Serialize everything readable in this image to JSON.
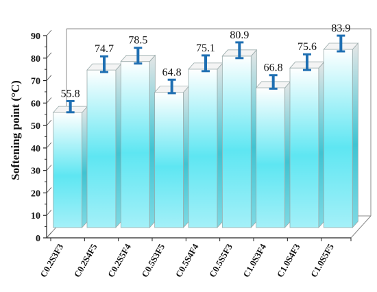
{
  "chart_data": {
    "type": "bar",
    "categories": [
      "C0.2S3F3",
      "C0.2S4F5",
      "C0.2S5F4",
      "C0.5S3F5",
      "C0.5S4F4",
      "C0.5S5F3",
      "C1.0S3F4",
      "C1.0S4F3",
      "C1.0S5F5"
    ],
    "values": [
      55.8,
      74.7,
      78.5,
      64.8,
      75.1,
      80.9,
      66.8,
      75.6,
      83.9
    ],
    "value_labels": [
      "55.8",
      "74.7",
      "78.5",
      "64.8",
      "75.1",
      "80.9",
      "66.8",
      "75.6",
      "83.9"
    ],
    "error": [
      2.5,
      3.5,
      3.5,
      3,
      3.5,
      3.5,
      3,
      3.5,
      3.5
    ],
    "ylabel": "Softening point (°C)",
    "xlabel": "",
    "ylim": [
      0,
      90
    ],
    "yticks": [
      0,
      10,
      20,
      30,
      40,
      50,
      60,
      70,
      80,
      90
    ],
    "grid": false,
    "style": "3d-bars",
    "colors": {
      "bar_top": "#ffffff",
      "bar_mid": "#5ee6f2",
      "bar_bottom": "#9aeef7",
      "error_bar": "#1f6fb2",
      "frame": "#888888"
    }
  }
}
